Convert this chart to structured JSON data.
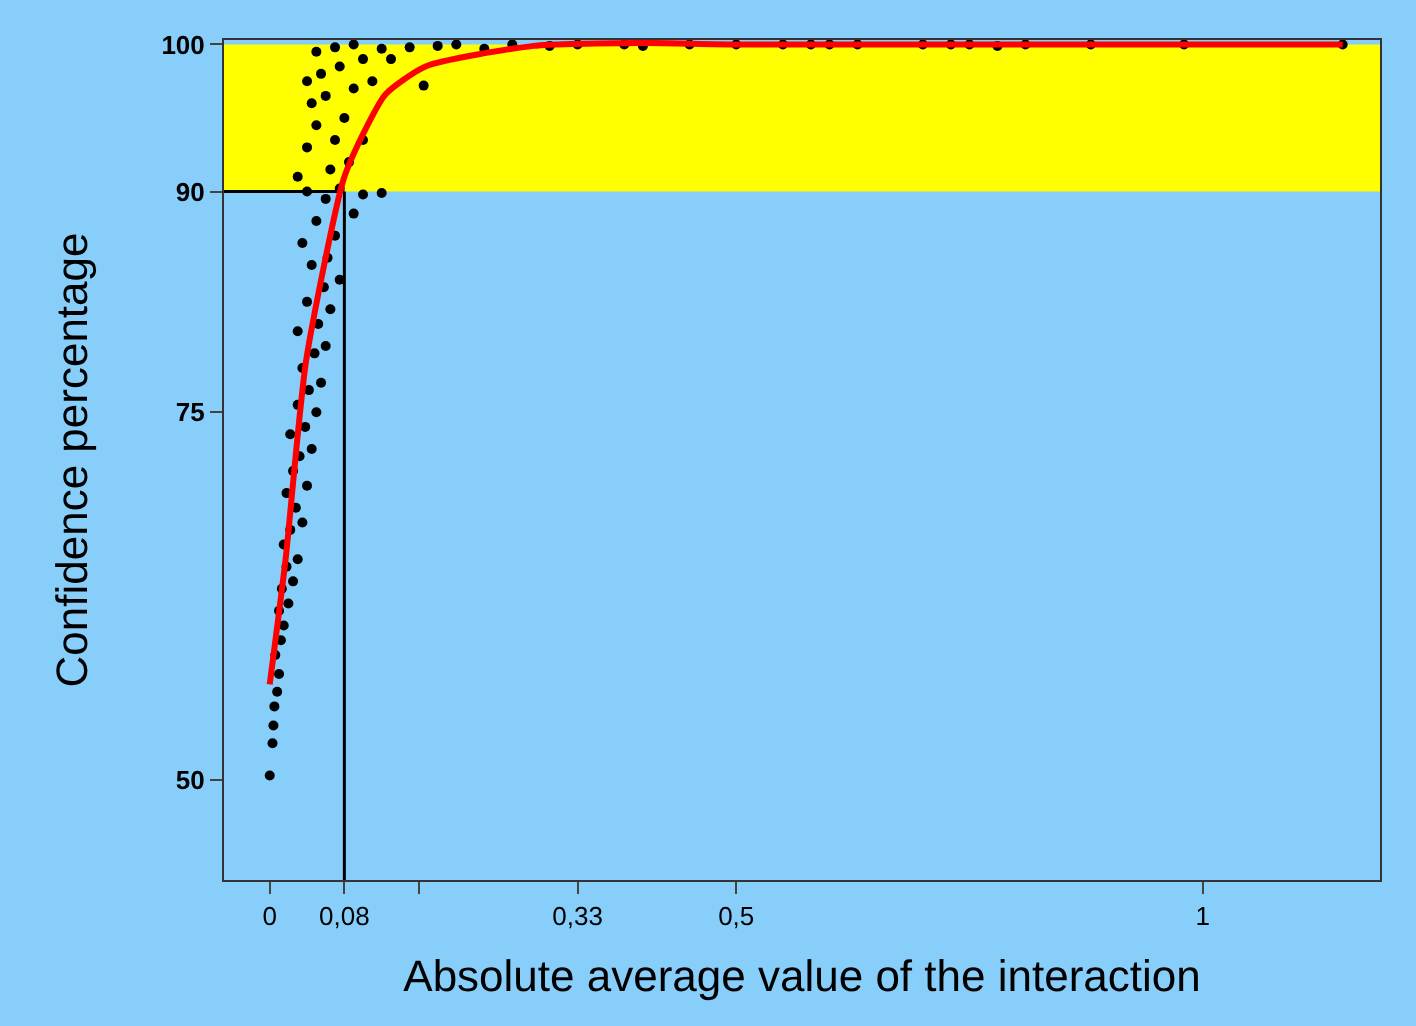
{
  "chart_data": {
    "type": "scatter",
    "xlabel": "Absolute average value of the interaction",
    "ylabel": "Confidence percentage",
    "xlim": [
      -0.049,
      1.19
    ],
    "ylim": [
      43.2,
      100.3
    ],
    "xticks": [
      {
        "value": 0,
        "label": "0"
      },
      {
        "value": 0.08,
        "label": "0,08"
      },
      {
        "value": 0.16,
        "label": null
      },
      {
        "value": 0.33,
        "label": "0,33"
      },
      {
        "value": 0.5,
        "label": "0,5"
      },
      {
        "value": 1,
        "label": "1"
      }
    ],
    "yticks": [
      50,
      75,
      90,
      100
    ],
    "grid": false,
    "series": [
      {
        "color": "#000000",
        "marker": "circle",
        "x": [
          0.0,
          0.003,
          0.004,
          0.005,
          0.008,
          0.01,
          0.006,
          0.012,
          0.015,
          0.01,
          0.02,
          0.013,
          0.025,
          0.018,
          0.03,
          0.015,
          0.022,
          0.035,
          0.028,
          0.018,
          0.04,
          0.025,
          0.032,
          0.045,
          0.022,
          0.038,
          0.05,
          0.03,
          0.042,
          0.055,
          0.035,
          0.048,
          0.06,
          0.03,
          0.052,
          0.065,
          0.04,
          0.058,
          0.075,
          0.045,
          0.062,
          0.035,
          0.07,
          0.05,
          0.09,
          0.06,
          0.04,
          0.075,
          0.1,
          0.12,
          0.03,
          0.065,
          0.085,
          0.04,
          0.07,
          0.1,
          0.05,
          0.08,
          0.045,
          0.06,
          0.09,
          0.11,
          0.04,
          0.055,
          0.075,
          0.1,
          0.13,
          0.05,
          0.07,
          0.09,
          0.12,
          0.15,
          0.18,
          0.2,
          0.23,
          0.26,
          0.3,
          0.33,
          0.38,
          0.4,
          0.45,
          0.5,
          0.55,
          0.58,
          0.6,
          0.63,
          0.7,
          0.73,
          0.75,
          0.78,
          0.81,
          0.88,
          0.98,
          1.15,
          0.165
        ],
        "values": [
          50.3,
          52.5,
          53.7,
          55,
          56,
          57.2,
          58.5,
          59.5,
          60.5,
          61.5,
          62,
          63,
          63.5,
          64.5,
          65,
          66,
          67,
          67.5,
          68.5,
          69.5,
          70,
          71,
          72,
          72.5,
          73.5,
          74,
          75,
          75.5,
          76.5,
          77,
          78,
          79,
          79.5,
          80.5,
          81,
          82,
          82.5,
          83.5,
          84,
          85,
          85.5,
          86.5,
          87,
          88,
          88.5,
          89.5,
          90,
          90.2,
          89.8,
          89.9,
          91,
          91.5,
          92,
          93,
          93.5,
          93.5,
          94.5,
          95,
          96,
          96.5,
          97,
          97.5,
          97.5,
          98,
          98.5,
          99,
          99,
          99.5,
          99.8,
          100,
          99.7,
          99.8,
          99.9,
          100,
          99.7,
          100,
          99.9,
          100,
          100,
          99.9,
          100,
          100,
          100,
          100,
          100,
          100,
          100,
          100,
          100,
          99.9,
          100,
          100,
          100,
          100,
          97.2
        ]
      },
      {
        "type": "line",
        "color": "#ff0000",
        "marker": "none",
        "line_style": "solid",
        "x": [
          0,
          0.017,
          0.039,
          0.079,
          0.1,
          0.124,
          0.167,
          0.283,
          0.4,
          0.5,
          1.15
        ],
        "values": [
          56.5,
          65,
          78.5,
          90.8,
          93.9,
          96.6,
          98.5,
          99.9,
          100.1,
          100,
          100
        ]
      }
    ],
    "ref_lines": [
      {
        "axis": "x",
        "value": 0.08,
        "color": "#000000"
      },
      {
        "axis": "y",
        "value": 90,
        "color": "#000000"
      }
    ],
    "bands": [
      {
        "axis": "y",
        "from": 90,
        "to": 100,
        "color": "#ffff00"
      }
    ]
  }
}
